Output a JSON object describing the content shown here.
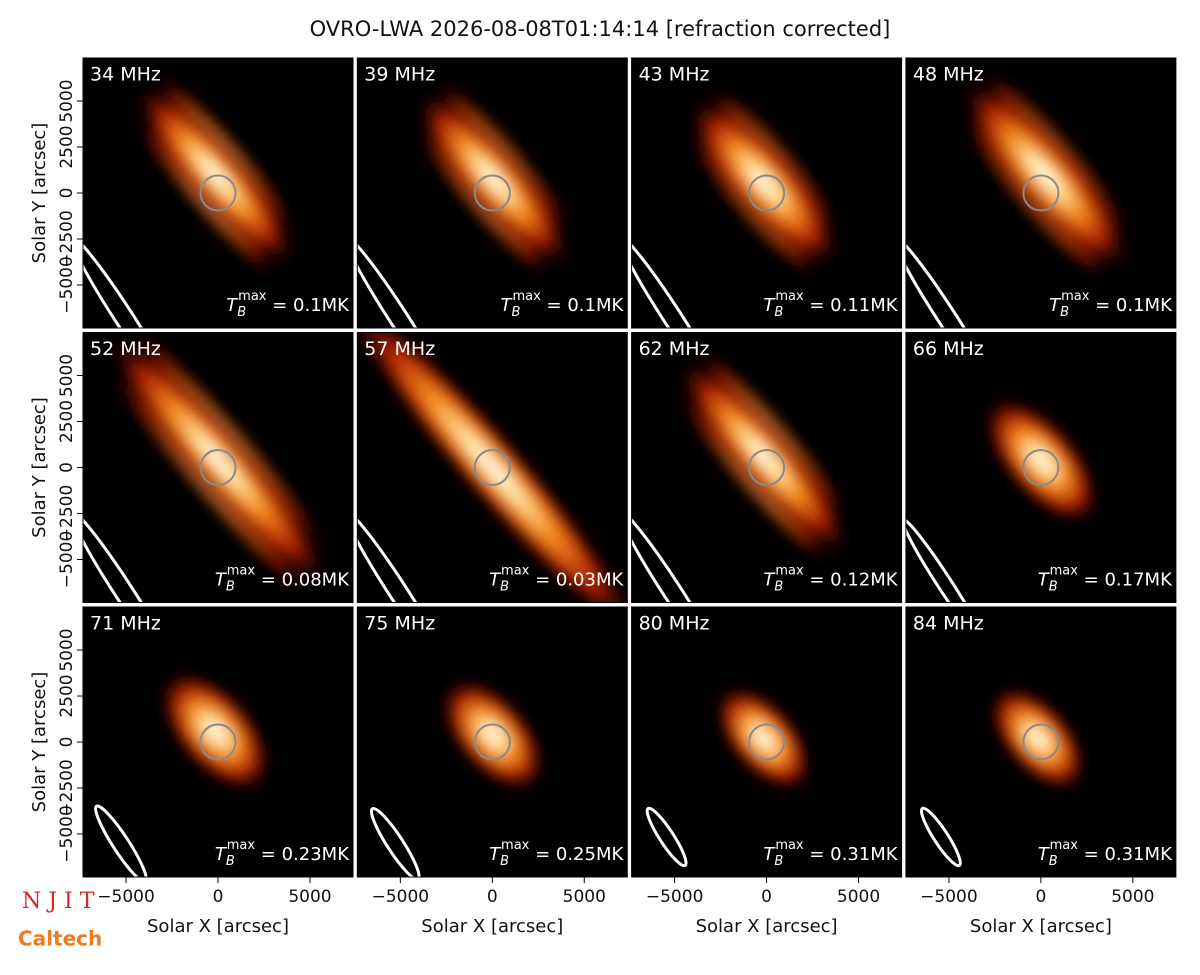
{
  "chart_data": {
    "type": "image-grid",
    "title": "OVRO-LWA 2026-08-08T01:14:14 [refraction corrected]",
    "xlabel": "Solar X [arcsec]",
    "ylabel": "Solar Y [arcsec]",
    "xlim": [
      -7340,
      7340
    ],
    "ylim": [
      -7340,
      7340
    ],
    "xticks": [
      {
        "value": -5000,
        "label": "−5000"
      },
      0,
      5000
    ],
    "yticks": [
      {
        "value": -5000,
        "label": "−5000"
      },
      {
        "value": -2500,
        "label": "−2500"
      },
      0,
      2500,
      5000
    ],
    "tb_symbol": "T",
    "tb_sub": "B",
    "tb_sup": "max",
    "panels": [
      {
        "label": "34 MHz",
        "tb_max": " = 0.1MK"
      },
      {
        "label": "39 MHz",
        "tb_max": " = 0.1MK"
      },
      {
        "label": "43 MHz",
        "tb_max": " = 0.11MK"
      },
      {
        "label": "48 MHz",
        "tb_max": " = 0.1MK"
      },
      {
        "label": "52 MHz",
        "tb_max": " = 0.08MK"
      },
      {
        "label": "57 MHz",
        "tb_max": " = 0.03MK"
      },
      {
        "label": "62 MHz",
        "tb_max": " = 0.12MK"
      },
      {
        "label": "66 MHz",
        "tb_max": " = 0.17MK"
      },
      {
        "label": "71 MHz",
        "tb_max": " = 0.23MK"
      },
      {
        "label": "75 MHz",
        "tb_max": " = 0.25MK"
      },
      {
        "label": "80 MHz",
        "tb_max": " = 0.31MK"
      },
      {
        "label": "84 MHz",
        "tb_max": " = 0.31MK"
      }
    ]
  },
  "logos": [
    "N J I T",
    "Caltech"
  ]
}
